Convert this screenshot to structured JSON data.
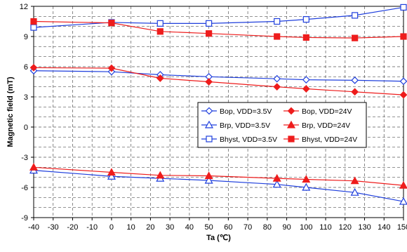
{
  "chart_data": {
    "type": "line",
    "xlabel": "Ta (℃)",
    "ylabel": "Magnetic field (mT)",
    "x": [
      -40,
      0,
      25,
      50,
      85,
      100,
      125,
      150
    ],
    "xlim": [
      -40,
      150
    ],
    "ylim": [
      -9,
      12
    ],
    "x_ticks": [
      -40,
      -30,
      -20,
      -10,
      0,
      10,
      20,
      30,
      40,
      50,
      60,
      70,
      80,
      90,
      100,
      110,
      120,
      130,
      140,
      150
    ],
    "y_ticks": [
      -9,
      -6,
      -3,
      0,
      3,
      6,
      9,
      12
    ],
    "grid": true,
    "legend_position": "center-right",
    "series": [
      {
        "name": "Bop, VDD=3.5V",
        "color": "#1f3fdd",
        "marker": "diamond-open",
        "values": [
          5.6,
          5.5,
          5.2,
          5.0,
          4.8,
          4.7,
          4.65,
          4.55
        ]
      },
      {
        "name": "Bop, VDD=24V",
        "color": "#ee1c1c",
        "marker": "diamond-filled",
        "values": [
          5.9,
          5.85,
          4.85,
          4.5,
          4.0,
          3.8,
          3.5,
          3.2
        ]
      },
      {
        "name": "Brp, VDD=3.5V",
        "color": "#1f3fdd",
        "marker": "triangle-open",
        "values": [
          -4.3,
          -4.9,
          -5.1,
          -5.3,
          -5.7,
          -6.0,
          -6.5,
          -7.4
        ]
      },
      {
        "name": "Brp, VDD=24V",
        "color": "#ee1c1c",
        "marker": "triangle-filled",
        "values": [
          -4.0,
          -4.5,
          -4.8,
          -4.85,
          -5.1,
          -5.2,
          -5.35,
          -5.8
        ]
      },
      {
        "name": "Bhyst, VDD=3.5V",
        "color": "#1f3fdd",
        "marker": "square-open",
        "values": [
          9.9,
          10.4,
          10.3,
          10.3,
          10.5,
          10.7,
          11.1,
          11.9
        ]
      },
      {
        "name": "Bhyst, VDD=24V",
        "color": "#ee1c1c",
        "marker": "square-filled",
        "values": [
          10.5,
          10.35,
          9.5,
          9.3,
          9.0,
          8.9,
          8.85,
          9.0
        ]
      }
    ]
  }
}
